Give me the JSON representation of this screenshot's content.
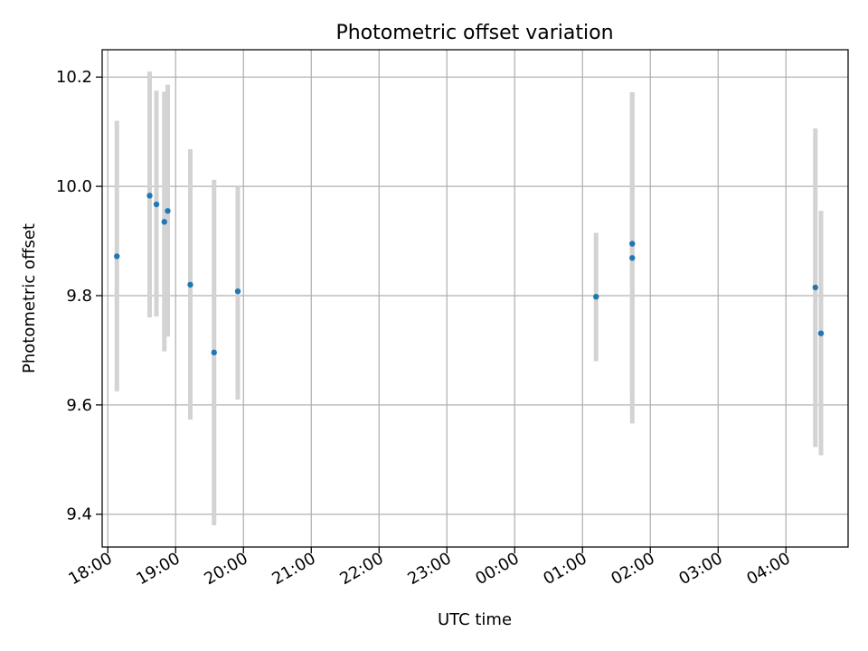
{
  "chart_data": {
    "type": "scatter",
    "title": "Photometric offset variation",
    "xlabel": "UTC time",
    "ylabel": "Photometric offset",
    "xlim": [
      "17:55",
      "04:55"
    ],
    "ylim": [
      9.34,
      10.25
    ],
    "x_ticks": [
      "18:00",
      "19:00",
      "20:00",
      "21:00",
      "22:00",
      "23:00",
      "00:00",
      "01:00",
      "02:00",
      "03:00",
      "04:00"
    ],
    "y_ticks": [
      "9.4",
      "9.6",
      "9.8",
      "10.0",
      "10.2"
    ],
    "grid": true,
    "marker_color": "#1f77b4",
    "errorbar_color": "#d3d3d3",
    "points": [
      {
        "time": "18:08",
        "y": 9.872,
        "err_low": 9.625,
        "err_high": 10.12
      },
      {
        "time": "18:37",
        "y": 9.983,
        "err_low": 9.76,
        "err_high": 10.21
      },
      {
        "time": "18:43",
        "y": 9.967,
        "err_low": 9.762,
        "err_high": 10.175
      },
      {
        "time": "18:50",
        "y": 9.935,
        "err_low": 9.698,
        "err_high": 10.173
      },
      {
        "time": "18:53",
        "y": 9.955,
        "err_low": 9.725,
        "err_high": 10.186
      },
      {
        "time": "19:13",
        "y": 9.82,
        "err_low": 9.573,
        "err_high": 10.068
      },
      {
        "time": "19:34",
        "y": 9.696,
        "err_low": 9.38,
        "err_high": 10.012
      },
      {
        "time": "19:55",
        "y": 9.808,
        "err_low": 9.61,
        "err_high": 10.0
      },
      {
        "time": "01:12",
        "y": 9.798,
        "err_low": 9.68,
        "err_high": 9.915
      },
      {
        "time": "01:44",
        "y": 9.895,
        "err_low": 9.615,
        "err_high": 10.172
      },
      {
        "time": "01:44",
        "y": 9.869,
        "err_low": 9.566,
        "err_high": 10.172
      },
      {
        "time": "04:26",
        "y": 9.815,
        "err_low": 9.523,
        "err_high": 10.106
      },
      {
        "time": "04:31",
        "y": 9.731,
        "err_low": 9.508,
        "err_high": 9.955
      }
    ]
  }
}
